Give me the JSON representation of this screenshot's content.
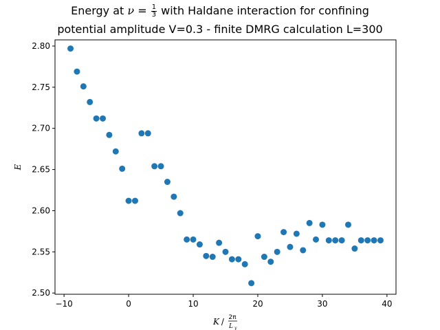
{
  "chart_data": {
    "type": "scatter",
    "title_line1_pre": "Energy at ",
    "title_nu": "ν",
    "title_eq": " = ",
    "title_frac_num": "1",
    "title_frac_den": "3",
    "title_line1_post": " with Haldane interaction for confining",
    "title_line2": "potential amplitude V=0.3 - finite DMRG calculation L=300",
    "xlabel_var": "K",
    "xlabel_sep": " / ",
    "xlabel_frac_num": "2π",
    "xlabel_frac_den": "L",
    "xlabel_frac_den_sub": "y",
    "ylabel": "E",
    "xlim": [
      -11.4,
      41.4
    ],
    "ylim": [
      2.4985,
      2.8075
    ],
    "x_ticks": [
      -10,
      0,
      10,
      20,
      30,
      40
    ],
    "y_ticks": [
      2.5,
      2.55,
      2.6,
      2.65,
      2.7,
      2.75,
      2.8
    ],
    "y_tick_labels": [
      "2.50",
      "2.55",
      "2.60",
      "2.65",
      "2.70",
      "2.75",
      "2.80"
    ],
    "grid": false,
    "marker_color": "#1f77b4",
    "points": [
      {
        "x": -9,
        "y": 2.797
      },
      {
        "x": -8,
        "y": 2.769
      },
      {
        "x": -7,
        "y": 2.751
      },
      {
        "x": -6,
        "y": 2.732
      },
      {
        "x": -5,
        "y": 2.712
      },
      {
        "x": -4,
        "y": 2.712
      },
      {
        "x": -3,
        "y": 2.692
      },
      {
        "x": -2,
        "y": 2.672
      },
      {
        "x": -1,
        "y": 2.651
      },
      {
        "x": 0,
        "y": 2.612
      },
      {
        "x": 1,
        "y": 2.612
      },
      {
        "x": 2,
        "y": 2.694
      },
      {
        "x": 3,
        "y": 2.694
      },
      {
        "x": 4,
        "y": 2.654
      },
      {
        "x": 5,
        "y": 2.654
      },
      {
        "x": 6,
        "y": 2.635
      },
      {
        "x": 7,
        "y": 2.617
      },
      {
        "x": 8,
        "y": 2.597
      },
      {
        "x": 9,
        "y": 2.565
      },
      {
        "x": 10,
        "y": 2.565
      },
      {
        "x": 11,
        "y": 2.559
      },
      {
        "x": 12,
        "y": 2.545
      },
      {
        "x": 13,
        "y": 2.544
      },
      {
        "x": 14,
        "y": 2.561
      },
      {
        "x": 15,
        "y": 2.55
      },
      {
        "x": 16,
        "y": 2.541
      },
      {
        "x": 17,
        "y": 2.541
      },
      {
        "x": 18,
        "y": 2.535
      },
      {
        "x": 19,
        "y": 2.512
      },
      {
        "x": 20,
        "y": 2.569
      },
      {
        "x": 21,
        "y": 2.544
      },
      {
        "x": 22,
        "y": 2.538
      },
      {
        "x": 23,
        "y": 2.55
      },
      {
        "x": 24,
        "y": 2.574
      },
      {
        "x": 25,
        "y": 2.556
      },
      {
        "x": 26,
        "y": 2.572
      },
      {
        "x": 27,
        "y": 2.552
      },
      {
        "x": 28,
        "y": 2.585
      },
      {
        "x": 29,
        "y": 2.565
      },
      {
        "x": 30,
        "y": 2.583
      },
      {
        "x": 31,
        "y": 2.564
      },
      {
        "x": 32,
        "y": 2.564
      },
      {
        "x": 33,
        "y": 2.564
      },
      {
        "x": 34,
        "y": 2.583
      },
      {
        "x": 35,
        "y": 2.554
      },
      {
        "x": 36,
        "y": 2.564
      },
      {
        "x": 37,
        "y": 2.564
      },
      {
        "x": 38,
        "y": 2.564
      },
      {
        "x": 39,
        "y": 2.564
      }
    ]
  }
}
